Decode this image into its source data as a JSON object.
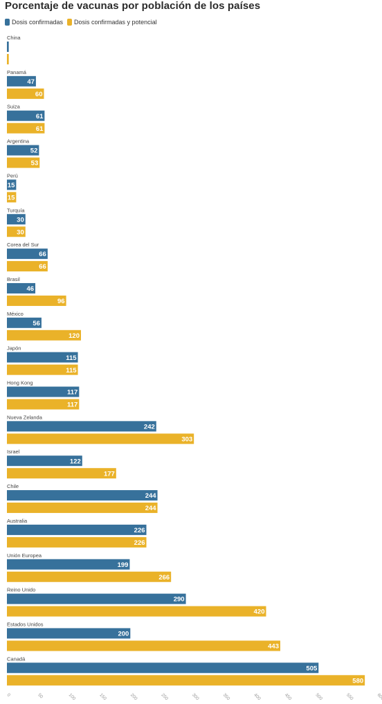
{
  "chart_data": {
    "type": "bar",
    "orientation": "horizontal",
    "title": "Porcentaje de vacunas por población de los países",
    "categories": [
      "China",
      "Panamá",
      "Suiza",
      "Argentina",
      "Perú",
      "Turquía",
      "Corea del Sur",
      "Brasil",
      "México",
      "Japón",
      "Hong Kong",
      "Nueva Zelanda",
      "Israel",
      "Chile",
      "Australia",
      "Unión Europea",
      "Reino Unido",
      "Estados Unidos",
      "Canadá"
    ],
    "series": [
      {
        "name": "Dosis confirmadas",
        "color": "#37719b",
        "values": [
          3,
          47,
          61,
          52,
          15,
          30,
          66,
          46,
          56,
          115,
          117,
          242,
          122,
          244,
          226,
          199,
          290,
          200,
          505
        ]
      },
      {
        "name": "Dosis confirmadas y potencial",
        "color": "#eab229",
        "values": [
          3,
          60,
          61,
          53,
          15,
          30,
          66,
          96,
          120,
          115,
          117,
          303,
          177,
          244,
          226,
          266,
          420,
          443,
          580
        ]
      }
    ],
    "data_labels": [
      [
        "",
        "47",
        "61",
        "52",
        "15",
        "30",
        "66",
        "46",
        "56",
        "115",
        "117",
        "242",
        "122",
        "244",
        "226",
        "199",
        "290",
        "200",
        "505"
      ],
      [
        "",
        "60",
        "61",
        "53",
        "15",
        "30",
        "66",
        "96",
        "120",
        "115",
        "117",
        "303",
        "177",
        "244",
        "226",
        "266",
        "420",
        "443",
        "580"
      ]
    ],
    "xlim": [
      0,
      600
    ],
    "x_ticks": [
      0,
      50,
      100,
      150,
      200,
      250,
      300,
      350,
      400,
      450,
      500,
      550,
      600
    ],
    "xlabel": "",
    "ylabel": "",
    "grid": false,
    "legend_position": "top-left"
  }
}
